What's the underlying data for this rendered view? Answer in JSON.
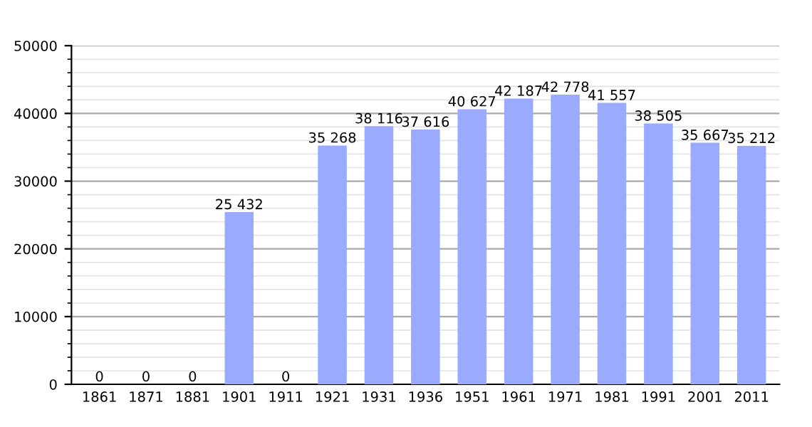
{
  "chart_data": {
    "type": "bar",
    "categories": [
      "1861",
      "1871",
      "1881",
      "1901",
      "1911",
      "1921",
      "1931",
      "1936",
      "1951",
      "1961",
      "1971",
      "1981",
      "1991",
      "2001",
      "2011"
    ],
    "values": [
      0,
      0,
      0,
      25432,
      0,
      35268,
      38116,
      37616,
      40627,
      42187,
      42778,
      41557,
      38505,
      35667,
      35212
    ],
    "value_labels": [
      "0",
      "0",
      "0",
      "25 432",
      "0",
      "35 268",
      "38 116",
      "37 616",
      "40 627",
      "42 187",
      "42 778",
      "41 557",
      "38 505",
      "35 667",
      "35 212"
    ],
    "color": "#99aaff",
    "ylim": [
      0,
      50000
    ],
    "yticks": [
      0,
      10000,
      20000,
      30000,
      40000,
      50000
    ],
    "grid": "y",
    "legend": false
  }
}
